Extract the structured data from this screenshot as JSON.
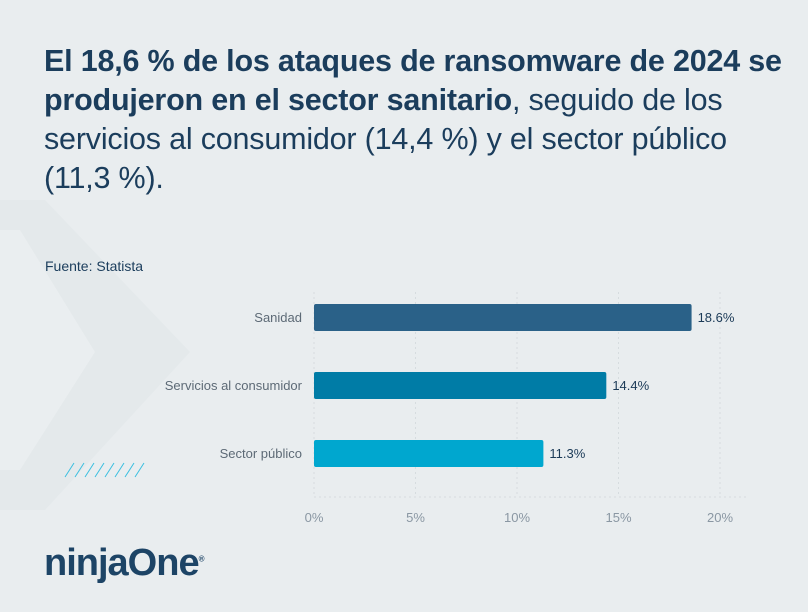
{
  "headline": {
    "bold": "El 18,6 % de los ataques de ransomware de 2024 se produjeron en el sector sanitario",
    "rest": ", seguido de los servicios al consumidor (14,4 %) y el sector público (11,3 %)."
  },
  "source": "Fuente: Statista",
  "logo": "ninjaOne",
  "chart_data": {
    "type": "bar",
    "orientation": "horizontal",
    "categories": [
      "Sanidad",
      "Servicios al consumidor",
      "Sector público"
    ],
    "values": [
      18.6,
      14.4,
      11.3
    ],
    "data_labels": [
      "18.6%",
      "14.4%",
      "11.3%"
    ],
    "colors": [
      "#2a6188",
      "#007ca6",
      "#00a7cf"
    ],
    "xlim": [
      0,
      20
    ],
    "xticks": [
      0,
      5,
      10,
      15,
      20
    ],
    "xtick_labels": [
      "0%",
      "5%",
      "10%",
      "15%",
      "20%"
    ],
    "grid": true,
    "title": "",
    "xlabel": "",
    "ylabel": ""
  }
}
